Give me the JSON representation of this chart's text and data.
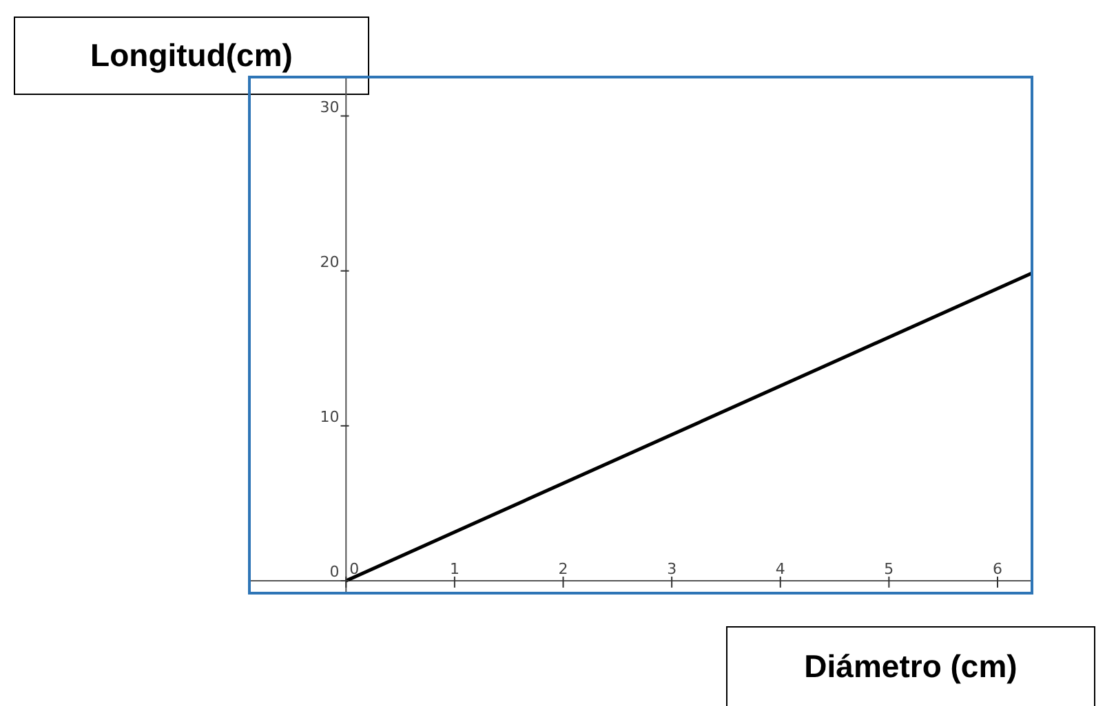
{
  "chart_data": {
    "type": "line",
    "xlabel": "Diámetro (cm)",
    "ylabel": "Longitud(cm)",
    "x": [
      0,
      6.33
    ],
    "series": [
      {
        "color": "#000000",
        "values": [
          0,
          19.9
        ]
      }
    ],
    "xlim": [
      -0.89,
      6.33
    ],
    "ylim": [
      -0.8,
      32.6
    ],
    "xticks": [
      0,
      1,
      2,
      3,
      4,
      5,
      6
    ],
    "yticks": [
      0,
      10,
      20,
      30
    ],
    "grid": false,
    "marker": "none",
    "line_style": "solid"
  }
}
